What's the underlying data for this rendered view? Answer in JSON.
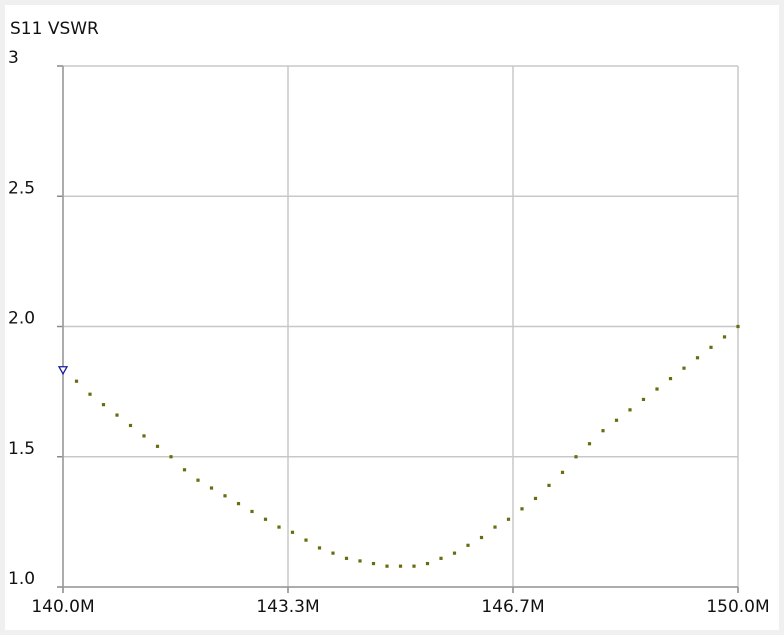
{
  "chart_data": {
    "type": "scatter",
    "title": "S11 VSWR",
    "x": [
      140000000,
      140200000,
      140400000,
      140600000,
      140800000,
      141000000,
      141200000,
      141400000,
      141600000,
      141800000,
      142000000,
      142200000,
      142400000,
      142600000,
      142800000,
      143000000,
      143200000,
      143400000,
      143600000,
      143800000,
      144000000,
      144200000,
      144400000,
      144600000,
      144800000,
      145000000,
      145200000,
      145400000,
      145600000,
      145800000,
      146000000,
      146200000,
      146400000,
      146600000,
      146800000,
      147000000,
      147200000,
      147400000,
      147600000,
      147800000,
      148000000,
      148200000,
      148400000,
      148600000,
      148800000,
      149000000,
      149200000,
      149400000,
      149600000,
      149800000,
      150000000
    ],
    "series": [
      {
        "color": "#6b6b12",
        "values": [
          1.83,
          1.79,
          1.74,
          1.7,
          1.66,
          1.62,
          1.58,
          1.54,
          1.5,
          1.45,
          1.41,
          1.38,
          1.35,
          1.32,
          1.29,
          1.26,
          1.23,
          1.21,
          1.18,
          1.15,
          1.13,
          1.11,
          1.1,
          1.09,
          1.08,
          1.08,
          1.08,
          1.09,
          1.11,
          1.13,
          1.16,
          1.19,
          1.23,
          1.26,
          1.3,
          1.34,
          1.39,
          1.44,
          1.5,
          1.55,
          1.6,
          1.64,
          1.68,
          1.72,
          1.76,
          1.8,
          1.84,
          1.88,
          1.92,
          1.96,
          2.0
        ]
      }
    ],
    "marker_color": "#1a1aa0",
    "xlim": [
      140000000,
      150000000
    ],
    "xticks": [
      {
        "value": 140000000,
        "label": "140.0M"
      },
      {
        "value": 143333333,
        "label": "143.3M"
      },
      {
        "value": 146666667,
        "label": "146.7M"
      },
      {
        "value": 150000000,
        "label": "150.0M"
      }
    ],
    "ylim": [
      1,
      3
    ],
    "yticks": [
      {
        "value": 1,
        "label": "1.0"
      },
      1.5,
      {
        "value": 2,
        "label": "2.0"
      },
      2.5,
      3
    ],
    "grid": true
  }
}
